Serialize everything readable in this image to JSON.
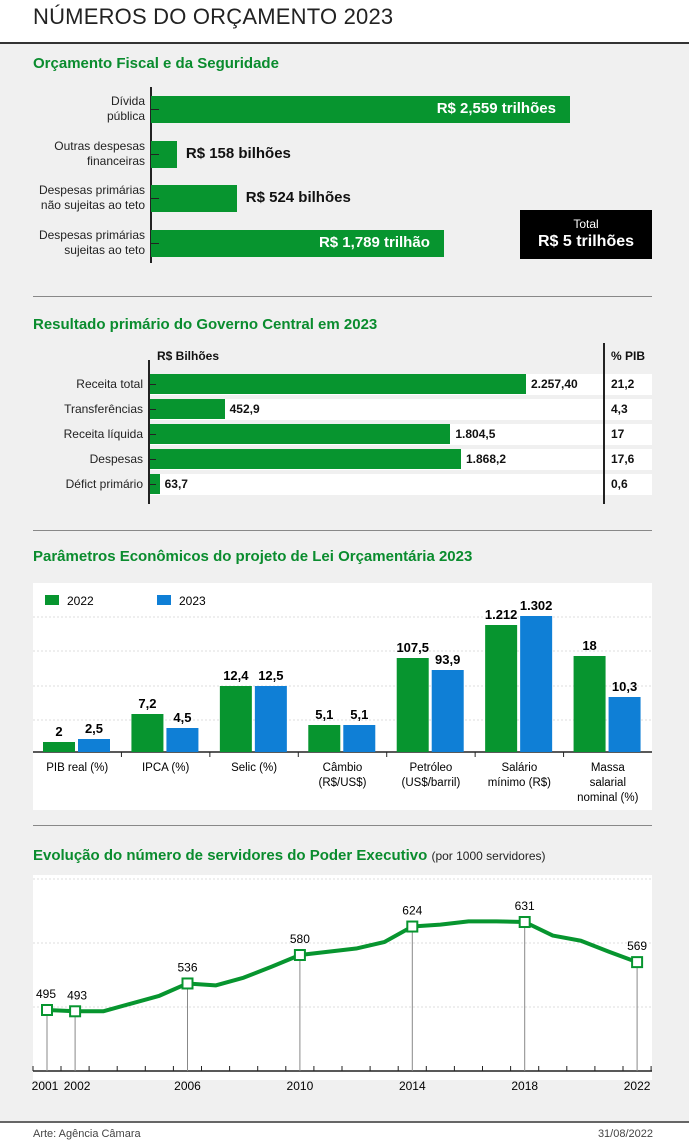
{
  "title": "NÚMEROS DO ORÇAMENTO 2023",
  "footer": {
    "credit": "Arte: Agência Câmara",
    "date": "31/08/2022"
  },
  "colors": {
    "green": "#07952f",
    "blue": "#0f7fd6",
    "title_green": "#0a8c2e"
  },
  "chart_data": [
    {
      "type": "bar",
      "orientation": "horizontal",
      "title": "Orçamento Fiscal e da Seguridade",
      "unit": "R$ bilhões",
      "categories": [
        "Dívida pública",
        "Outras despesas financeiras",
        "Despesas primárias não sujeitas ao teto",
        "Despesas primárias sujeitas ao teto"
      ],
      "category_lines": [
        [
          "Dívida",
          "pública"
        ],
        [
          "Outras despesas",
          "financeiras"
        ],
        [
          "Despesas primárias",
          "não sujeitas ao teto"
        ],
        [
          "Despesas primárias",
          "sujeitas ao teto"
        ]
      ],
      "values": [
        2559,
        158,
        524,
        1789
      ],
      "labels": [
        "R$ 2,559 trilhões",
        "R$ 158 bilhões",
        "R$ 524 bilhões",
        "R$ 1,789 trilhão"
      ],
      "total": {
        "label": "Total",
        "value": "R$ 5 trilhões"
      }
    },
    {
      "type": "bar",
      "orientation": "horizontal",
      "title": "Resultado primário do Governo Central em 2023",
      "value_header": "R$ Bilhões",
      "pct_header": "% PIB",
      "categories": [
        "Receita total",
        "Transferências",
        "Receita líquida",
        "Despesas",
        "Défict primário"
      ],
      "values": [
        2257.4,
        452.9,
        1804.5,
        1868.2,
        63.7
      ],
      "labels": [
        "2.257,40",
        "452,9",
        "1.804,5",
        "1.868,2",
        "63,7"
      ],
      "pct": [
        "21,2",
        "4,3",
        "17",
        "17,6",
        "0,6"
      ]
    },
    {
      "type": "bar",
      "title": "Parâmetros Econômicos do projeto de Lei Orçamentária 2023",
      "categories": [
        "PIB real (%)",
        "IPCA (%)",
        "Selic (%)",
        "Câmbio (R$/US$)",
        "Petróleo (US$/barril)",
        "Salário mínimo (R$)",
        "Massa salarial nominal (%)"
      ],
      "category_lines": [
        [
          "PIB real (%)"
        ],
        [
          "IPCA (%)"
        ],
        [
          "Selic (%)"
        ],
        [
          "Câmbio",
          "(R$/US$)"
        ],
        [
          "Petróleo",
          "(US$/barril)"
        ],
        [
          "Salário",
          "mínimo (R$)"
        ],
        [
          "Massa",
          "salarial",
          "nominal (%)"
        ]
      ],
      "series": [
        {
          "name": "2022",
          "values": [
            2,
            7.2,
            12.4,
            5.1,
            107.5,
            1212,
            18
          ],
          "labels": [
            "2",
            "7,2",
            "12,4",
            "5,1",
            "107,5",
            "1.212",
            "18"
          ]
        },
        {
          "name": "2023",
          "values": [
            2.5,
            4.5,
            12.5,
            5.1,
            93.9,
            1302,
            10.3
          ],
          "labels": [
            "2,5",
            "4,5",
            "12,5",
            "5,1",
            "93,9",
            "1.302",
            "10,3"
          ]
        }
      ],
      "legend": "top-left"
    },
    {
      "type": "line",
      "title": "Evolução do número de servidores do Poder Executivo",
      "subtitle": "(por 1000 servidores)",
      "x": [
        2001,
        2002,
        2003,
        2004,
        2005,
        2006,
        2007,
        2008,
        2009,
        2010,
        2011,
        2012,
        2013,
        2014,
        2015,
        2016,
        2017,
        2018,
        2019,
        2020,
        2021,
        2022
      ],
      "y": [
        495,
        493,
        493,
        505,
        517,
        536,
        533,
        545,
        562,
        580,
        585,
        590,
        600,
        624,
        627,
        632,
        632,
        631,
        610,
        602,
        585,
        569
      ],
      "labeled_points": [
        {
          "x": "2001",
          "y": "495"
        },
        {
          "x": "2002",
          "y": "493"
        },
        {
          "x": "2006",
          "y": "536"
        },
        {
          "x": "2010",
          "y": "580"
        },
        {
          "x": "2014",
          "y": "624"
        },
        {
          "x": "2018",
          "y": "631"
        },
        {
          "x": "2022",
          "y": "569"
        }
      ],
      "x_tick_labels": [
        "2001",
        "2002",
        "2006",
        "2010",
        "2014",
        "2018",
        "2022"
      ],
      "xlim": [
        2001,
        2022
      ]
    }
  ]
}
